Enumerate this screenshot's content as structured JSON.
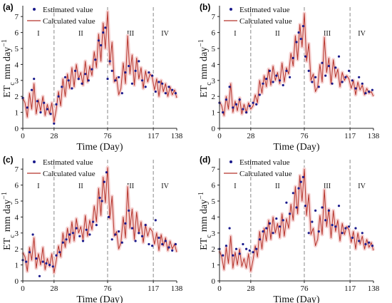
{
  "figure": {
    "xlabel": "Time (Day)",
    "ylabel": "ET",
    "ylabel_sub": "c",
    "ylabel_units": "mm day",
    "ylabel_sup": "−1",
    "legend": {
      "estimated": "Estimated value",
      "calculated": "Calculated value"
    },
    "colors": {
      "estimated": "#1a1a8c",
      "calculated": "#b5332a",
      "band": "#f6d4d4",
      "divider": "#888888"
    }
  },
  "chart_data": [
    {
      "panel": "(a)",
      "type": "line",
      "x_ticks": [
        "0",
        "28",
        "76",
        "117",
        "138"
      ],
      "y_ticks": [
        "0",
        "1",
        "2",
        "3",
        "4",
        "5",
        "6",
        "7"
      ],
      "xlim": [
        0,
        138
      ],
      "ylim": [
        0,
        7.5
      ],
      "phase_labels": [
        "I",
        "II",
        "III",
        "IV"
      ],
      "phase_boundaries": [
        28,
        76,
        117
      ],
      "series": [
        {
          "name": "Estimated value",
          "style": "points",
          "x": [
            0,
            4,
            8,
            10,
            13,
            16,
            19,
            22,
            25,
            28,
            30,
            32,
            35,
            38,
            41,
            44,
            47,
            50,
            53,
            56,
            59,
            62,
            65,
            68,
            70,
            72,
            74,
            76,
            78,
            80,
            83,
            86,
            89,
            92,
            95,
            98,
            101,
            104,
            107,
            110,
            113,
            116,
            119,
            122,
            125,
            128,
            131,
            134,
            137
          ],
          "y": [
            1.9,
            1.3,
            2.4,
            3.1,
            1.7,
            1.0,
            1.6,
            1.2,
            0.9,
            0.3,
            1.5,
            2.0,
            2.6,
            3.2,
            3.0,
            2.5,
            3.6,
            3.1,
            2.8,
            3.4,
            3.0,
            3.7,
            4.3,
            5.5,
            5.2,
            6.0,
            6.3,
            3.1,
            4.2,
            3.6,
            3.0,
            3.2,
            2.2,
            3.5,
            3.9,
            2.8,
            3.6,
            4.2,
            3.0,
            2.6,
            3.5,
            3.3,
            2.3,
            2.9,
            2.8,
            2.2,
            2.6,
            2.4,
            2.2
          ]
        },
        {
          "name": "Calculated value",
          "style": "line",
          "x": [
            0,
            2,
            4,
            6,
            8,
            10,
            12,
            14,
            16,
            18,
            20,
            22,
            24,
            26,
            28,
            30,
            32,
            34,
            36,
            38,
            40,
            42,
            44,
            46,
            48,
            50,
            52,
            54,
            56,
            58,
            60,
            62,
            64,
            66,
            68,
            70,
            72,
            74,
            76,
            78,
            80,
            82,
            84,
            86,
            88,
            90,
            92,
            94,
            96,
            98,
            100,
            102,
            104,
            106,
            108,
            110,
            112,
            114,
            116,
            118,
            120,
            122,
            124,
            126,
            128,
            130,
            132,
            134,
            136,
            138
          ],
          "y": [
            1.9,
            1.6,
            0.7,
            2.2,
            1.2,
            2.8,
            0.9,
            1.8,
            1.1,
            2.0,
            0.8,
            1.5,
            0.9,
            1.6,
            0.4,
            1.2,
            2.3,
            1.4,
            3.1,
            2.0,
            3.4,
            2.5,
            3.8,
            2.6,
            4.0,
            3.1,
            3.5,
            2.7,
            4.2,
            2.9,
            3.9,
            3.3,
            4.8,
            3.8,
            5.9,
            4.2,
            6.6,
            5.0,
            7.3,
            4.0,
            5.4,
            2.9,
            3.2,
            2.1,
            2.5,
            4.1,
            2.8,
            5.8,
            3.4,
            4.6,
            2.7,
            4.4,
            3.1,
            3.8,
            2.5,
            3.6,
            2.9,
            3.4,
            3.2,
            2.4,
            3.1,
            2.0,
            3.0,
            2.3,
            2.8,
            2.0,
            2.6,
            2.1,
            2.4,
            1.9
          ]
        }
      ]
    },
    {
      "panel": "(b)",
      "type": "line",
      "x_ticks": [
        "0",
        "28",
        "76",
        "117",
        "138"
      ],
      "y_ticks": [
        "0",
        "1",
        "2",
        "3",
        "4",
        "5",
        "6",
        "7"
      ],
      "xlim": [
        0,
        138
      ],
      "ylim": [
        0,
        7.5
      ],
      "phase_labels": [
        "I",
        "II",
        "III",
        "IV"
      ],
      "phase_boundaries": [
        28,
        76,
        117
      ],
      "series": [
        {
          "name": "Estimated value",
          "style": "points",
          "x": [
            0,
            3,
            6,
            9,
            12,
            15,
            18,
            21,
            24,
            27,
            30,
            33,
            36,
            39,
            42,
            45,
            48,
            51,
            54,
            57,
            60,
            63,
            66,
            69,
            71,
            73,
            75,
            77,
            80,
            83,
            86,
            89,
            92,
            95,
            98,
            101,
            104,
            107,
            110,
            113,
            116,
            119,
            122,
            125,
            128,
            131,
            134,
            137
          ],
          "y": [
            1.6,
            1.0,
            1.8,
            2.6,
            1.3,
            1.5,
            1.8,
            1.2,
            1.0,
            1.4,
            1.6,
            1.5,
            2.1,
            2.8,
            3.1,
            3.6,
            2.9,
            3.3,
            3.0,
            2.7,
            3.6,
            3.2,
            4.4,
            5.4,
            6.0,
            5.6,
            6.4,
            4.5,
            3.6,
            2.9,
            3.2,
            2.6,
            4.1,
            3.3,
            3.9,
            2.8,
            3.8,
            4.5,
            2.9,
            3.2,
            3.6,
            3.0,
            2.5,
            3.2,
            2.8,
            2.2,
            2.3,
            2.4
          ]
        },
        {
          "name": "Calculated value",
          "style": "line",
          "x": [
            0,
            2,
            4,
            6,
            8,
            10,
            12,
            14,
            16,
            18,
            20,
            22,
            24,
            26,
            28,
            30,
            32,
            34,
            36,
            38,
            40,
            42,
            44,
            46,
            48,
            50,
            52,
            54,
            56,
            58,
            60,
            62,
            64,
            66,
            68,
            70,
            72,
            74,
            76,
            78,
            80,
            82,
            84,
            86,
            88,
            90,
            92,
            94,
            96,
            98,
            100,
            102,
            104,
            106,
            108,
            110,
            112,
            114,
            116,
            118,
            120,
            122,
            124,
            126,
            128,
            130,
            132,
            134,
            136,
            138
          ],
          "y": [
            1.7,
            1.4,
            0.8,
            2.0,
            1.2,
            2.8,
            1.0,
            1.7,
            1.1,
            1.9,
            0.9,
            1.5,
            1.0,
            1.6,
            1.2,
            1.4,
            2.1,
            1.6,
            3.0,
            2.2,
            3.3,
            2.6,
            3.7,
            2.7,
            3.9,
            3.0,
            3.5,
            2.8,
            4.1,
            2.9,
            3.8,
            3.4,
            4.7,
            3.9,
            5.8,
            4.3,
            6.5,
            5.1,
            7.2,
            4.2,
            5.3,
            3.0,
            3.4,
            2.3,
            2.6,
            4.0,
            2.9,
            5.7,
            3.5,
            4.4,
            2.8,
            4.3,
            3.2,
            3.7,
            2.6,
            3.5,
            3.0,
            3.3,
            3.1,
            2.5,
            3.0,
            2.1,
            2.9,
            2.4,
            2.7,
            2.1,
            2.5,
            2.2,
            2.3,
            2.0
          ]
        }
      ]
    },
    {
      "panel": "(c)",
      "type": "line",
      "x_ticks": [
        "0",
        "28",
        "76",
        "117",
        "138"
      ],
      "y_ticks": [
        "0",
        "1",
        "2",
        "3",
        "4",
        "5",
        "6",
        "7"
      ],
      "xlim": [
        0,
        138
      ],
      "ylim": [
        0,
        7.5
      ],
      "phase_labels": [
        "I",
        "II",
        "III",
        "IV"
      ],
      "phase_boundaries": [
        28,
        76,
        117
      ],
      "series": [
        {
          "name": "Estimated value",
          "style": "points",
          "x": [
            0,
            3,
            6,
            9,
            12,
            15,
            18,
            21,
            24,
            27,
            30,
            33,
            36,
            39,
            42,
            45,
            48,
            51,
            54,
            57,
            60,
            63,
            66,
            69,
            71,
            73,
            75,
            77,
            80,
            83,
            86,
            89,
            92,
            95,
            98,
            101,
            104,
            107,
            110,
            113,
            116,
            119,
            122,
            125,
            128,
            131,
            134,
            137
          ],
          "y": [
            1.3,
            1.2,
            1.8,
            2.9,
            1.4,
            0.3,
            1.2,
            1.1,
            1.0,
            0.9,
            1.6,
            1.8,
            2.4,
            2.6,
            2.9,
            3.0,
            3.3,
            2.8,
            2.5,
            3.2,
            2.9,
            3.7,
            3.5,
            5.2,
            5.0,
            6.2,
            6.8,
            4.0,
            2.6,
            2.9,
            3.1,
            2.4,
            3.6,
            4.4,
            3.3,
            2.5,
            3.0,
            2.8,
            3.5,
            2.3,
            2.2,
            3.8,
            2.7,
            2.3,
            2.5,
            2.1,
            1.9,
            2.3
          ]
        },
        {
          "name": "Calculated value",
          "style": "line",
          "x": [
            0,
            2,
            4,
            6,
            8,
            10,
            12,
            14,
            16,
            18,
            20,
            22,
            24,
            26,
            28,
            30,
            32,
            34,
            36,
            38,
            40,
            42,
            44,
            46,
            48,
            50,
            52,
            54,
            56,
            58,
            60,
            62,
            64,
            66,
            68,
            70,
            72,
            74,
            76,
            78,
            80,
            82,
            84,
            86,
            88,
            90,
            92,
            94,
            96,
            98,
            100,
            102,
            104,
            106,
            108,
            110,
            112,
            114,
            116,
            118,
            120,
            122,
            124,
            126,
            128,
            130,
            132,
            134,
            136,
            138
          ],
          "y": [
            1.8,
            1.5,
            0.6,
            2.1,
            1.3,
            2.7,
            0.8,
            1.7,
            1.0,
            2.1,
            0.7,
            1.4,
            0.9,
            1.7,
            0.5,
            1.3,
            2.2,
            1.5,
            3.0,
            2.1,
            3.3,
            2.4,
            3.7,
            2.5,
            3.9,
            3.0,
            3.4,
            2.6,
            4.1,
            2.8,
            3.8,
            3.2,
            4.7,
            3.7,
            5.8,
            4.1,
            6.5,
            4.9,
            7.1,
            3.9,
            5.3,
            2.8,
            3.1,
            2.0,
            2.4,
            4.0,
            2.7,
            5.9,
            3.3,
            4.5,
            2.6,
            4.3,
            3.0,
            3.7,
            2.4,
            3.5,
            2.8,
            3.3,
            3.1,
            2.3,
            3.0,
            1.9,
            2.9,
            2.2,
            2.7,
            1.9,
            2.5,
            2.0,
            2.3,
            1.8
          ]
        }
      ]
    },
    {
      "panel": "(d)",
      "type": "line",
      "x_ticks": [
        "0",
        "28",
        "76",
        "117",
        "138"
      ],
      "y_ticks": [
        "0",
        "1",
        "2",
        "3",
        "4",
        "5",
        "6",
        "7"
      ],
      "xlim": [
        0,
        138
      ],
      "ylim": [
        0,
        7.5
      ],
      "phase_labels": [
        "I",
        "II",
        "III",
        "IV"
      ],
      "phase_boundaries": [
        28,
        76,
        117
      ],
      "series": [
        {
          "name": "Estimated value",
          "style": "points",
          "x": [
            0,
            3,
            6,
            9,
            12,
            15,
            18,
            21,
            24,
            27,
            30,
            33,
            36,
            39,
            42,
            45,
            48,
            51,
            54,
            57,
            60,
            63,
            66,
            69,
            71,
            73,
            75,
            77,
            80,
            83,
            86,
            89,
            92,
            95,
            98,
            101,
            104,
            107,
            110,
            113,
            116,
            119,
            122,
            125,
            128,
            131,
            134,
            137
          ],
          "y": [
            2.0,
            1.6,
            2.2,
            3.3,
            1.6,
            2.0,
            1.7,
            2.3,
            2.0,
            1.9,
            1.8,
            2.0,
            2.6,
            3.1,
            3.3,
            3.6,
            3.0,
            3.9,
            3.4,
            3.8,
            4.9,
            4.2,
            5.5,
            4.6,
            5.8,
            6.2,
            6.5,
            4.7,
            3.0,
            3.7,
            4.4,
            3.1,
            4.6,
            3.8,
            4.4,
            3.5,
            3.4,
            4.7,
            3.0,
            3.3,
            3.4,
            2.7,
            3.3,
            2.5,
            3.0,
            2.3,
            2.4,
            2.2
          ]
        },
        {
          "name": "Calculated value",
          "style": "line",
          "x": [
            0,
            2,
            4,
            6,
            8,
            10,
            12,
            14,
            16,
            18,
            20,
            22,
            24,
            26,
            28,
            30,
            32,
            34,
            36,
            38,
            40,
            42,
            44,
            46,
            48,
            50,
            52,
            54,
            56,
            58,
            60,
            62,
            64,
            66,
            68,
            70,
            72,
            74,
            76,
            78,
            80,
            82,
            84,
            86,
            88,
            90,
            92,
            94,
            96,
            98,
            100,
            102,
            104,
            106,
            108,
            110,
            112,
            114,
            116,
            118,
            120,
            122,
            124,
            126,
            128,
            130,
            132,
            134,
            136,
            138
          ],
          "y": [
            1.9,
            1.5,
            0.7,
            2.1,
            1.1,
            2.8,
            0.8,
            1.8,
            1.0,
            2.0,
            0.9,
            1.4,
            0.8,
            1.7,
            0.6,
            1.3,
            2.2,
            1.5,
            3.1,
            2.0,
            3.3,
            2.5,
            3.8,
            2.6,
            4.0,
            3.0,
            3.6,
            2.7,
            4.2,
            2.8,
            3.9,
            3.3,
            4.8,
            3.8,
            5.9,
            4.2,
            6.6,
            5.0,
            7.0,
            4.1,
            5.4,
            2.9,
            3.3,
            2.2,
            2.6,
            4.1,
            2.9,
            5.7,
            3.4,
            4.5,
            2.7,
            4.4,
            3.1,
            3.8,
            2.5,
            3.6,
            2.9,
            3.4,
            3.2,
            2.4,
            3.1,
            2.0,
            3.0,
            2.3,
            2.8,
            2.0,
            2.6,
            2.1,
            2.4,
            1.9
          ]
        }
      ]
    }
  ]
}
